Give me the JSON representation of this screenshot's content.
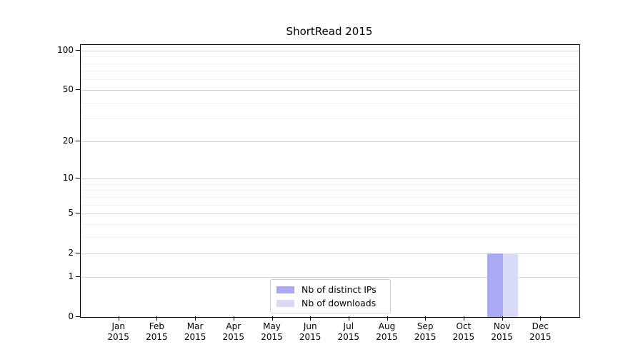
{
  "figure": {
    "background": "#ffffff"
  },
  "chart_data": {
    "type": "bar",
    "title": "ShortRead 2015",
    "xlabel": "",
    "ylabel": "",
    "x_tick_months": [
      "Jan",
      "Feb",
      "Mar",
      "Apr",
      "May",
      "Jun",
      "Jul",
      "Aug",
      "Sep",
      "Oct",
      "Nov",
      "Dec"
    ],
    "x_tick_year": "2015",
    "y_scale": "log1p",
    "ylim": [
      0,
      110
    ],
    "y_major_ticks": [
      0,
      1,
      2,
      5,
      10,
      20,
      50,
      100
    ],
    "y_minor_gridlines": [
      3,
      4,
      6,
      7,
      8,
      9,
      30,
      40,
      60,
      70,
      80,
      90
    ],
    "grid": "horizontal",
    "legend_position": "bottom-center",
    "series": [
      {
        "name": "Nb of distinct IPs",
        "color": "#a9a9f4",
        "values": [
          0,
          0,
          0,
          0,
          0,
          0,
          0,
          0,
          0,
          0,
          2,
          0
        ]
      },
      {
        "name": "Nb of downloads",
        "color": "#d9d9f8",
        "values": [
          0,
          0,
          0,
          0,
          0,
          0,
          0,
          0,
          0,
          0,
          2,
          0
        ]
      }
    ],
    "colors": {
      "axis": "#000000",
      "major_grid": "#d4d4d4",
      "minor_grid": "#f1f1f1",
      "legend_border": "#cccccc",
      "text": "#000000"
    }
  }
}
